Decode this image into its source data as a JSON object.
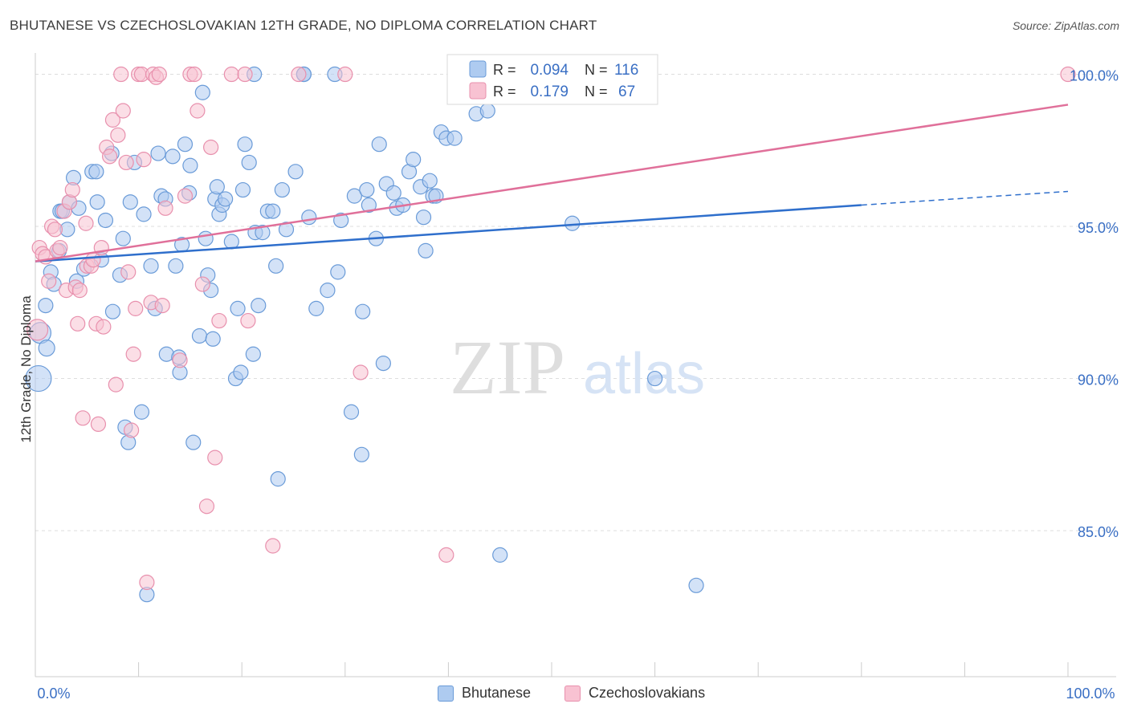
{
  "title": "BHUTANESE VS CZECHOSLOVAKIAN 12TH GRADE, NO DIPLOMA CORRELATION CHART",
  "source": "Source: ZipAtlas.com",
  "watermark": {
    "zip": "ZIP",
    "atlas": "atlas"
  },
  "legend_box": [
    {
      "r_label": "R =",
      "r_value": "0.094",
      "n_label": "N =",
      "n_value": "116"
    },
    {
      "r_label": "R =",
      "r_value": "0.179",
      "n_label": "N =",
      "n_value": "67"
    }
  ],
  "legend_bottom": [
    {
      "label": "Bhutanese"
    },
    {
      "label": "Czechoslovakians"
    }
  ],
  "colors": {
    "blue_fill": "#aecbf0",
    "blue_stroke": "#6a9bd8",
    "blue_line": "#2f6fcc",
    "pink_fill": "#f8c2d2",
    "pink_stroke": "#e890ad",
    "pink_line": "#e0709a",
    "value_text": "#3a6fc4",
    "grid": "#dddddd"
  },
  "chart_data": {
    "type": "scatter",
    "title": "BHUTANESE VS CZECHOSLOVAKIAN 12TH GRADE, NO DIPLOMA CORRELATION CHART",
    "xlabel": "",
    "ylabel": "12th Grade, No Diploma",
    "xlim": [
      0,
      100
    ],
    "ylim": [
      80.2,
      100.7
    ],
    "x_tick_labels": [
      "0.0%",
      "100.0%"
    ],
    "y_ticks": [
      85,
      90,
      95,
      100
    ],
    "y_tick_labels": [
      "85.0%",
      "90.0%",
      "95.0%",
      "100.0%"
    ],
    "grid": true,
    "series": [
      {
        "name": "Bhutanese",
        "color": "#aecbf0",
        "trend": {
          "x": [
            0,
            80,
            100
          ],
          "y": [
            93.85,
            95.7,
            96.15
          ],
          "dashed_from": 80
        },
        "points": [
          [
            0.3,
            90.0
          ],
          [
            0.5,
            91.5
          ],
          [
            1.1,
            91.0
          ],
          [
            1.0,
            92.4
          ],
          [
            1.5,
            93.5
          ],
          [
            1.8,
            93.1
          ],
          [
            2.3,
            94.2
          ],
          [
            2.4,
            95.5
          ],
          [
            2.6,
            95.5
          ],
          [
            3.1,
            94.9
          ],
          [
            3.3,
            95.8
          ],
          [
            3.7,
            96.6
          ],
          [
            4.0,
            93.2
          ],
          [
            4.2,
            95.6
          ],
          [
            4.7,
            93.6
          ],
          [
            5.5,
            96.8
          ],
          [
            5.9,
            96.8
          ],
          [
            6.0,
            95.8
          ],
          [
            6.4,
            93.9
          ],
          [
            6.8,
            95.2
          ],
          [
            7.4,
            97.4
          ],
          [
            7.5,
            92.2
          ],
          [
            8.2,
            93.4
          ],
          [
            8.5,
            94.6
          ],
          [
            8.7,
            88.4
          ],
          [
            9.0,
            87.9
          ],
          [
            9.2,
            95.8
          ],
          [
            9.6,
            97.1
          ],
          [
            10.3,
            88.9
          ],
          [
            10.5,
            95.4
          ],
          [
            10.8,
            82.9
          ],
          [
            11.2,
            93.7
          ],
          [
            11.6,
            92.3
          ],
          [
            11.9,
            97.4
          ],
          [
            12.2,
            96.0
          ],
          [
            12.6,
            95.9
          ],
          [
            12.7,
            90.8
          ],
          [
            13.3,
            97.3
          ],
          [
            13.6,
            93.7
          ],
          [
            13.9,
            90.7
          ],
          [
            14.0,
            90.2
          ],
          [
            14.2,
            94.4
          ],
          [
            14.5,
            97.7
          ],
          [
            14.9,
            96.1
          ],
          [
            15.0,
            97.0
          ],
          [
            15.3,
            87.9
          ],
          [
            15.9,
            91.4
          ],
          [
            16.2,
            99.4
          ],
          [
            16.5,
            94.6
          ],
          [
            16.7,
            93.4
          ],
          [
            17.0,
            92.9
          ],
          [
            17.2,
            91.3
          ],
          [
            17.4,
            95.9
          ],
          [
            17.6,
            96.3
          ],
          [
            17.8,
            95.4
          ],
          [
            18.1,
            95.7
          ],
          [
            18.4,
            95.9
          ],
          [
            19.0,
            94.5
          ],
          [
            19.4,
            90.0
          ],
          [
            19.6,
            92.3
          ],
          [
            19.9,
            90.2
          ],
          [
            20.1,
            96.2
          ],
          [
            20.3,
            97.7
          ],
          [
            20.7,
            97.1
          ],
          [
            21.1,
            90.8
          ],
          [
            21.3,
            94.8
          ],
          [
            21.6,
            92.4
          ],
          [
            22.0,
            94.8
          ],
          [
            22.5,
            95.5
          ],
          [
            23.0,
            95.5
          ],
          [
            23.3,
            93.7
          ],
          [
            23.5,
            86.7
          ],
          [
            23.9,
            96.2
          ],
          [
            24.3,
            94.9
          ],
          [
            25.2,
            96.8
          ],
          [
            26.0,
            100.0
          ],
          [
            26.5,
            95.3
          ],
          [
            27.2,
            92.3
          ],
          [
            28.3,
            92.9
          ],
          [
            29.0,
            100.0
          ],
          [
            29.3,
            93.5
          ],
          [
            29.6,
            95.2
          ],
          [
            30.6,
            88.9
          ],
          [
            30.9,
            96.0
          ],
          [
            31.6,
            87.5
          ],
          [
            31.7,
            92.2
          ],
          [
            32.1,
            96.2
          ],
          [
            32.3,
            95.7
          ],
          [
            33.0,
            94.6
          ],
          [
            33.3,
            97.7
          ],
          [
            33.7,
            90.5
          ],
          [
            34.0,
            96.4
          ],
          [
            34.7,
            96.1
          ],
          [
            35.0,
            95.6
          ],
          [
            35.6,
            95.7
          ],
          [
            36.2,
            96.8
          ],
          [
            36.6,
            97.2
          ],
          [
            37.3,
            96.3
          ],
          [
            37.6,
            95.3
          ],
          [
            37.8,
            94.2
          ],
          [
            38.2,
            96.5
          ],
          [
            38.5,
            96.0
          ],
          [
            38.8,
            96.0
          ],
          [
            39.3,
            98.1
          ],
          [
            39.8,
            97.9
          ],
          [
            40.6,
            97.9
          ],
          [
            42.7,
            98.7
          ],
          [
            43.8,
            98.8
          ],
          [
            44.2,
            100.0
          ],
          [
            45.0,
            84.2
          ],
          [
            47.0,
            100.0
          ],
          [
            52.0,
            95.1
          ],
          [
            60.0,
            90.0
          ],
          [
            64.0,
            83.2
          ],
          [
            21.2,
            100.0
          ],
          [
            26.0,
            100.0
          ]
        ]
      },
      {
        "name": "Czechoslovakians",
        "color": "#f8c2d2",
        "trend": {
          "x": [
            0,
            100
          ],
          "y": [
            93.85,
            99.0
          ]
        },
        "points": [
          [
            0.2,
            91.6
          ],
          [
            0.4,
            94.3
          ],
          [
            0.7,
            94.1
          ],
          [
            1.0,
            94.0
          ],
          [
            1.3,
            93.2
          ],
          [
            1.6,
            95.0
          ],
          [
            1.9,
            94.9
          ],
          [
            2.1,
            94.2
          ],
          [
            2.4,
            94.3
          ],
          [
            2.8,
            95.5
          ],
          [
            3.0,
            92.9
          ],
          [
            3.3,
            95.8
          ],
          [
            3.6,
            96.2
          ],
          [
            3.9,
            93.0
          ],
          [
            4.1,
            91.8
          ],
          [
            4.3,
            92.9
          ],
          [
            4.6,
            88.7
          ],
          [
            4.9,
            95.1
          ],
          [
            5.0,
            93.7
          ],
          [
            5.4,
            93.7
          ],
          [
            5.6,
            93.9
          ],
          [
            5.9,
            91.8
          ],
          [
            6.1,
            88.5
          ],
          [
            6.4,
            94.3
          ],
          [
            6.6,
            91.7
          ],
          [
            6.9,
            97.6
          ],
          [
            7.2,
            97.3
          ],
          [
            7.5,
            98.5
          ],
          [
            7.8,
            89.8
          ],
          [
            8.0,
            98.0
          ],
          [
            8.3,
            100.0
          ],
          [
            8.5,
            98.8
          ],
          [
            8.8,
            97.1
          ],
          [
            9.0,
            93.5
          ],
          [
            9.3,
            88.3
          ],
          [
            9.5,
            90.8
          ],
          [
            9.7,
            92.3
          ],
          [
            10.0,
            100.0
          ],
          [
            10.3,
            100.0
          ],
          [
            10.5,
            97.2
          ],
          [
            10.8,
            83.3
          ],
          [
            11.2,
            92.5
          ],
          [
            11.4,
            100.0
          ],
          [
            11.7,
            99.9
          ],
          [
            12.0,
            100.0
          ],
          [
            12.3,
            92.4
          ],
          [
            12.6,
            95.6
          ],
          [
            14.0,
            90.6
          ],
          [
            14.5,
            96.0
          ],
          [
            15.0,
            100.0
          ],
          [
            15.4,
            100.0
          ],
          [
            15.7,
            98.8
          ],
          [
            16.2,
            93.1
          ],
          [
            16.6,
            85.8
          ],
          [
            17.0,
            97.6
          ],
          [
            17.4,
            87.4
          ],
          [
            17.8,
            91.9
          ],
          [
            19.0,
            100.0
          ],
          [
            20.3,
            100.0
          ],
          [
            20.6,
            91.9
          ],
          [
            23.0,
            84.5
          ],
          [
            25.5,
            100.0
          ],
          [
            30.0,
            100.0
          ],
          [
            31.5,
            90.2
          ],
          [
            39.8,
            84.2
          ],
          [
            43.0,
            100.0
          ],
          [
            100.0,
            100.0
          ]
        ]
      }
    ]
  }
}
